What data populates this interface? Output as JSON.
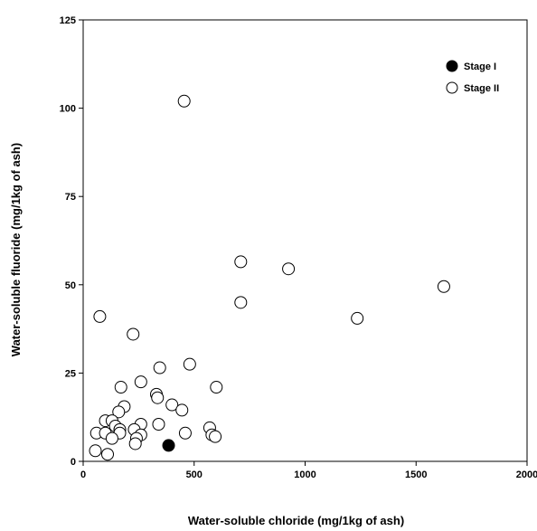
{
  "chart_data": {
    "type": "scatter",
    "title": "",
    "xlabel": "Water-soluble chloride (mg/1kg of ash)",
    "ylabel": "Water-soluble fluoride (mg/1kg of ash)",
    "xlim": [
      0,
      2000
    ],
    "ylim": [
      0,
      125
    ],
    "x_ticks": [
      0,
      500,
      1000,
      1500,
      2000
    ],
    "y_ticks": [
      0,
      25,
      50,
      75,
      100,
      125
    ],
    "grid": false,
    "legend_position": "top-right",
    "series": [
      {
        "name": "Stage I",
        "marker": "filled-circle",
        "color": "#000000",
        "points": [
          [
            385,
            4.5
          ]
        ]
      },
      {
        "name": "Stage II",
        "marker": "open-circle",
        "color": "#000000",
        "points": [
          [
            455,
            102
          ],
          [
            710,
            56.5
          ],
          [
            925,
            54.5
          ],
          [
            710,
            45
          ],
          [
            1625,
            49.5
          ],
          [
            1235,
            40.5
          ],
          [
            75,
            41
          ],
          [
            225,
            36
          ],
          [
            345,
            26.5
          ],
          [
            480,
            27.5
          ],
          [
            260,
            22.5
          ],
          [
            600,
            21
          ],
          [
            170,
            21
          ],
          [
            330,
            19
          ],
          [
            335,
            18
          ],
          [
            400,
            16
          ],
          [
            185,
            15.5
          ],
          [
            445,
            14.5
          ],
          [
            160,
            14
          ],
          [
            100,
            11.5
          ],
          [
            130,
            11.5
          ],
          [
            145,
            10
          ],
          [
            260,
            10.5
          ],
          [
            340,
            10.5
          ],
          [
            570,
            9.5
          ],
          [
            165,
            9
          ],
          [
            230,
            9
          ],
          [
            60,
            8
          ],
          [
            100,
            8
          ],
          [
            165,
            8
          ],
          [
            260,
            7.5
          ],
          [
            460,
            8
          ],
          [
            580,
            7.5
          ],
          [
            595,
            7
          ],
          [
            130,
            6.5
          ],
          [
            240,
            6.5
          ],
          [
            235,
            5
          ],
          [
            55,
            3
          ],
          [
            110,
            2
          ]
        ]
      }
    ]
  }
}
